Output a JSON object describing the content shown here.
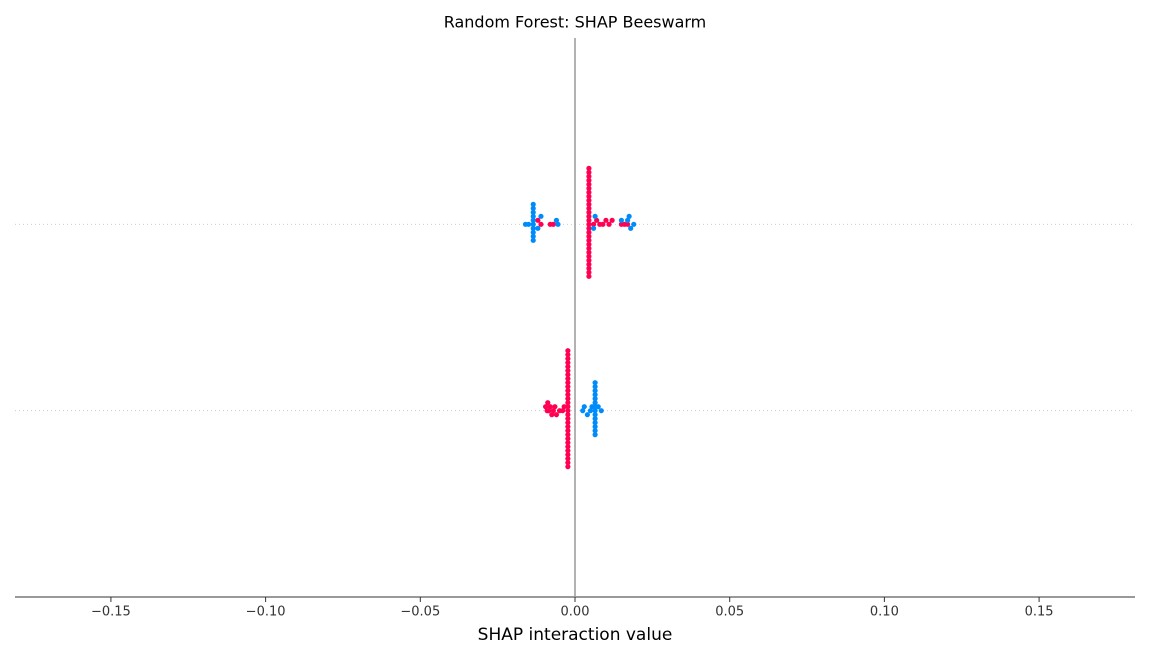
{
  "chart_data": {
    "type": "beeswarm",
    "title": "Random Forest: SHAP Beeswarm",
    "xlabel": "SHAP interaction value",
    "xlim": [
      -0.181,
      0.181
    ],
    "xticks": [
      {
        "value": -0.15,
        "label": "−0.15"
      },
      {
        "value": -0.1,
        "label": "−0.10"
      },
      {
        "value": -0.05,
        "label": "−0.05"
      },
      {
        "value": 0,
        "label": "0.00"
      },
      {
        "value": 0.05,
        "label": "0.05"
      },
      {
        "value": 0.1,
        "label": "0.10"
      },
      {
        "value": 0.15,
        "label": "0.15"
      }
    ],
    "categories": [
      null,
      null
    ],
    "rows": [
      {
        "series": [
          {
            "color": "#ff0052",
            "values": [
              0.0045,
              0.0045,
              0.0045,
              0.0045,
              0.0045,
              0.0045,
              0.0045,
              0.0045,
              0.0045,
              0.0045,
              0.0045,
              0.0045,
              0.0045,
              0.0045,
              0.0045,
              0.0045,
              0.0045,
              0.0045,
              0.0045,
              0.0045,
              0.0045,
              0.0045,
              0.0045,
              0.0045,
              0.0045,
              0.0045,
              0.0045,
              0.0045,
              0.006,
              0.007,
              0.008,
              0.009,
              0.01,
              0.011,
              0.012,
              0.015,
              0.016,
              0.017,
              -0.011,
              -0.012,
              -0.008,
              -0.007
            ]
          },
          {
            "color": "#008bfb",
            "values": [
              -0.0135,
              -0.0135,
              -0.0135,
              -0.0135,
              -0.0135,
              -0.0135,
              -0.0135,
              -0.0135,
              -0.0135,
              -0.0135,
              -0.016,
              -0.015,
              -0.012,
              -0.011,
              -0.0055,
              -0.006,
              0.006,
              0.0065,
              0.015,
              0.017,
              0.018,
              0.019,
              0.0175
            ]
          }
        ]
      },
      {
        "series": [
          {
            "color": "#ff0052",
            "values": [
              -0.0023,
              -0.0023,
              -0.0023,
              -0.0023,
              -0.0023,
              -0.0023,
              -0.0023,
              -0.0023,
              -0.0023,
              -0.0023,
              -0.0023,
              -0.0023,
              -0.0023,
              -0.0023,
              -0.0023,
              -0.0023,
              -0.0023,
              -0.0023,
              -0.0023,
              -0.0023,
              -0.0023,
              -0.0023,
              -0.0023,
              -0.0023,
              -0.0023,
              -0.0023,
              -0.0023,
              -0.0023,
              -0.0023,
              -0.0023,
              -0.009,
              -0.0085,
              -0.008,
              -0.0075,
              -0.007,
              -0.0065,
              -0.006,
              -0.005,
              -0.004,
              -0.0035,
              -0.0095,
              -0.0088
            ]
          },
          {
            "color": "#008bfb",
            "values": [
              0.0065,
              0.0065,
              0.0065,
              0.0065,
              0.0065,
              0.0065,
              0.0065,
              0.0065,
              0.0065,
              0.0065,
              0.0065,
              0.0065,
              0.0065,
              0.0065,
              0.0025,
              0.003,
              0.004,
              0.005,
              0.0055,
              0.0085,
              0.0075
            ]
          }
        ]
      }
    ]
  }
}
